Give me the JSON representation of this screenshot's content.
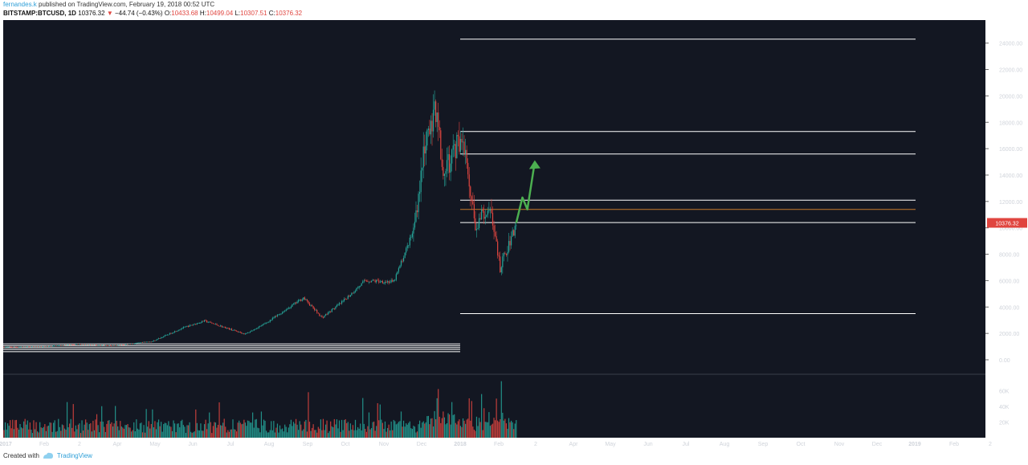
{
  "header": {
    "author": "fernandes.k",
    "published_text": "published on TradingView.com, February 19, 2018 00:52 UTC",
    "symbol": "BITSTAMP:BTCUSD, 1D",
    "last": "10376.32",
    "change": "−44.74 (−0.43%)",
    "open_label": "O:",
    "open": "10433.68",
    "high_label": "H:",
    "high": "10499.04",
    "low_label": "L:",
    "low": "10307.51",
    "close_label": "C:",
    "close": "10376.32"
  },
  "footer": {
    "created_with": "Created with",
    "brand": "TradingView"
  },
  "colors": {
    "background": "#131722",
    "up": "#26a69a",
    "down": "#e0453f",
    "price_tag": "#e0453f",
    "levels": "#ffffff",
    "orange_line": "#c87a2c",
    "arrow": "#4caf50"
  },
  "chart_data": {
    "type": "candlestick",
    "price_axis": {
      "ticks": [
        0,
        2000,
        4000,
        6000,
        8000,
        10000,
        12000,
        14000,
        16000,
        18000,
        20000,
        22000,
        24000
      ],
      "tick_labels": [
        "0.00",
        "2000.00",
        "4000.00",
        "6000.00",
        "8000.00",
        "10000.00",
        "12000.00",
        "14000.00",
        "16000.00",
        "18000.00",
        "20000.00",
        "22000.00",
        "24000.00"
      ],
      "last_price_label": "10376.32"
    },
    "volume_axis": {
      "ticks": [
        20000,
        40000,
        60000
      ],
      "tick_labels": [
        "20K",
        "40K",
        "60K"
      ]
    },
    "time_axis": {
      "labels": [
        "2017",
        "Feb",
        "2",
        "Apr",
        "May",
        "Jun",
        "Jul",
        "Aug",
        "Sep",
        "Oct",
        "Nov",
        "Dec",
        "2018",
        "Feb",
        "2",
        "Apr",
        "May",
        "Jun",
        "Jul",
        "Aug",
        "Sep",
        "Oct",
        "Nov",
        "Dec",
        "2019",
        "Feb",
        "2"
      ],
      "bold": [
        "2017",
        "2018",
        "2019"
      ]
    },
    "price_path": [
      [
        "2017-01-01",
        970
      ],
      [
        "2017-02-01",
        1000
      ],
      [
        "2017-03-01",
        1180
      ],
      [
        "2017-04-01",
        1080
      ],
      [
        "2017-05-01",
        1400
      ],
      [
        "2017-05-25",
        2400
      ],
      [
        "2017-06-12",
        2950
      ],
      [
        "2017-07-15",
        1950
      ],
      [
        "2017-08-01",
        2800
      ],
      [
        "2017-08-31",
        4700
      ],
      [
        "2017-09-15",
        3200
      ],
      [
        "2017-10-01",
        4350
      ],
      [
        "2017-10-20",
        6000
      ],
      [
        "2017-11-12",
        5900
      ],
      [
        "2017-11-28",
        9800
      ],
      [
        "2017-12-07",
        16000
      ],
      [
        "2017-12-17",
        19300
      ],
      [
        "2017-12-22",
        14000
      ],
      [
        "2018-01-06",
        17100
      ],
      [
        "2018-01-17",
        10200
      ],
      [
        "2018-01-28",
        11800
      ],
      [
        "2018-02-06",
        6900
      ],
      [
        "2018-02-19",
        10376
      ]
    ],
    "levels": [
      24300,
      17300,
      15600,
      12100,
      10400,
      3500
    ],
    "orange_level": 11400,
    "flat_lines_2017": [
      1200,
      1060,
      920,
      780,
      620
    ],
    "projection_arrow": [
      [
        "2018-02-19",
        10376
      ],
      [
        "2018-02-24",
        12300
      ],
      [
        "2018-02-28",
        11400
      ],
      [
        "2018-03-06",
        15000
      ]
    ]
  }
}
